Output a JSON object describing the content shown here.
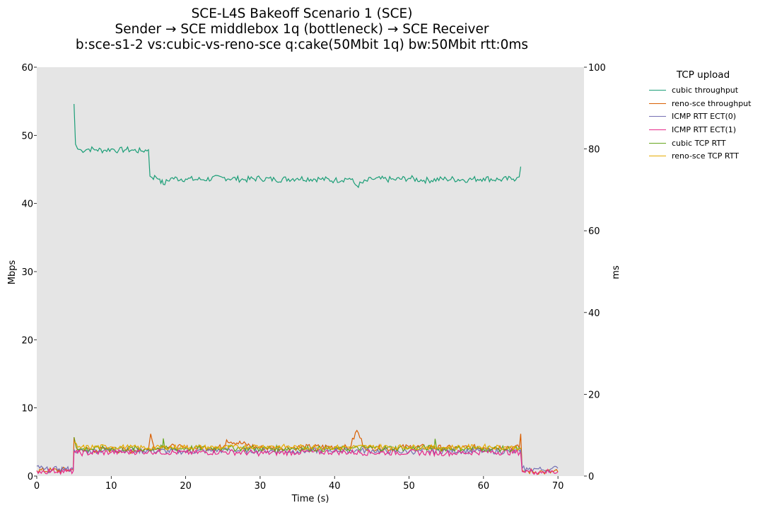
{
  "chart_data": {
    "type": "line",
    "title_lines": [
      "SCE-L4S Bakeoff Scenario 1 (SCE)",
      "Sender → SCE middlebox 1q (bottleneck) → SCE Receiver",
      "b:sce-s1-2 vs:cubic-vs-reno-sce q:cake(50Mbit 1q) bw:50Mbit rtt:0ms"
    ],
    "xlabel": "Time (s)",
    "ylabel_left": "Mbps",
    "ylabel_right": "ms",
    "xlim": [
      0,
      73.5
    ],
    "ylim_left": [
      0,
      60
    ],
    "ylim_right": [
      0,
      100
    ],
    "xticks": [
      0,
      10,
      20,
      30,
      40,
      50,
      60,
      70
    ],
    "yticks_left": [
      0,
      10,
      20,
      30,
      40,
      50,
      60
    ],
    "yticks_right": [
      0,
      20,
      40,
      60,
      80,
      100
    ],
    "grid": false,
    "background": "#e5e5e5",
    "legend": {
      "title": "TCP upload",
      "placement": "outside-right"
    },
    "series": [
      {
        "name": "cubic throughput",
        "axis": "left",
        "color": "#1b9e77",
        "x": [
          5.0,
          5.2,
          5.5,
          6.0,
          7.0,
          8.0,
          9.0,
          10.0,
          11.0,
          12.0,
          13.0,
          14.0,
          15.0,
          15.2,
          15.5,
          16.0,
          16.5,
          17.0,
          18.0,
          20.0,
          22.0,
          25.0,
          28.0,
          30.0,
          32.0,
          35.0,
          38.0,
          40.0,
          42.0,
          43.0,
          45.0,
          48.0,
          50.0,
          52.0,
          55.0,
          58.0,
          60.0,
          62.0,
          64.0,
          64.5,
          64.8,
          65.0
        ],
        "y": [
          54.6,
          48.7,
          48.0,
          47.8,
          48.0,
          47.9,
          47.8,
          48.0,
          47.8,
          47.9,
          47.8,
          47.7,
          47.9,
          44.0,
          43.8,
          43.9,
          43.6,
          42.8,
          43.7,
          43.6,
          43.5,
          43.8,
          43.5,
          43.7,
          43.5,
          43.7,
          43.6,
          43.4,
          43.7,
          42.6,
          43.6,
          43.5,
          43.7,
          43.4,
          43.6,
          43.5,
          43.7,
          43.5,
          43.6,
          43.8,
          43.9,
          45.4
        ]
      },
      {
        "name": "reno-sce throughput",
        "axis": "left",
        "color": "#d95f02",
        "x": [
          0,
          2,
          4,
          4.9,
          5.0,
          5.3,
          5.6,
          6.0,
          8.0,
          10.0,
          12.0,
          15.0,
          15.3,
          16.0,
          17.0,
          20.0,
          25.0,
          25.5,
          30.0,
          35.0,
          40.0,
          42.0,
          43.0,
          44.0,
          48.0,
          50.0,
          55.0,
          60.0,
          64.0,
          64.8,
          65.0,
          65.2,
          66.0,
          68.0,
          70.0
        ],
        "y": [
          0.8,
          0.8,
          0.9,
          0.9,
          5.7,
          4.2,
          3.6,
          4.0,
          3.8,
          3.9,
          3.7,
          3.9,
          6.2,
          3.9,
          4.4,
          4.1,
          4.2,
          5.3,
          4.1,
          4.2,
          4.3,
          4.1,
          6.7,
          4.2,
          4.0,
          4.3,
          4.1,
          4.2,
          4.3,
          4.1,
          6.2,
          0.8,
          0.7,
          0.6,
          0.6
        ]
      },
      {
        "name": "ICMP RTT ECT(0)",
        "axis": "right",
        "color": "#7570b3",
        "x": [
          0,
          1,
          2,
          3,
          4,
          4.9,
          5.0,
          5.5,
          10,
          15,
          20,
          25,
          30,
          35,
          40,
          45,
          50,
          55,
          60,
          64.9,
          65.0,
          65.2,
          66,
          67,
          68,
          69,
          70
        ],
        "y": [
          2.4,
          1.6,
          1.5,
          1.8,
          1.7,
          1.6,
          6.5,
          6.0,
          6.4,
          6.2,
          6.0,
          6.3,
          6.2,
          6.1,
          6.3,
          6.2,
          6.0,
          6.2,
          6.1,
          6.0,
          6.5,
          1.9,
          1.6,
          1.8,
          1.5,
          1.7,
          1.9
        ]
      },
      {
        "name": "ICMP RTT ECT(1)",
        "axis": "right",
        "color": "#e7298a",
        "x": [
          0,
          1,
          2,
          3,
          4,
          4.9,
          5.0,
          5.5,
          10,
          15,
          20,
          25,
          30,
          35,
          40,
          45,
          50,
          55,
          60,
          64.9,
          65.0,
          65.2,
          66,
          67,
          68,
          69,
          70
        ],
        "y": [
          1.3,
          1.1,
          1.3,
          1.2,
          1.1,
          1.2,
          6.0,
          5.6,
          5.8,
          6.0,
          5.7,
          5.9,
          5.6,
          5.8,
          5.9,
          5.7,
          5.8,
          5.6,
          5.9,
          5.8,
          5.5,
          1.1,
          1.2,
          1.0,
          1.1,
          1.0,
          1.0
        ]
      },
      {
        "name": "cubic TCP RTT",
        "axis": "right",
        "color": "#66a61e",
        "x": [
          5.0,
          5.5,
          10,
          15,
          16.9,
          17.0,
          17.2,
          20,
          25,
          30,
          35,
          40,
          45,
          50,
          53.4,
          53.5,
          53.7,
          60,
          65.0
        ],
        "y": [
          9.5,
          6.5,
          6.8,
          6.6,
          6.9,
          9.2,
          6.7,
          6.8,
          6.9,
          6.7,
          6.8,
          6.6,
          6.9,
          6.8,
          6.9,
          9.1,
          6.8,
          6.7,
          6.6
        ]
      },
      {
        "name": "reno-sce TCP RTT",
        "axis": "right",
        "color": "#e6ab02",
        "x": [
          5.0,
          5.5,
          10,
          15,
          20,
          25,
          30,
          35,
          40,
          45,
          50,
          55,
          60,
          65.0
        ],
        "y": [
          8.2,
          7.0,
          7.2,
          6.9,
          7.1,
          7.0,
          7.3,
          7.1,
          7.0,
          7.2,
          7.1,
          7.0,
          7.2,
          6.9
        ]
      }
    ]
  }
}
